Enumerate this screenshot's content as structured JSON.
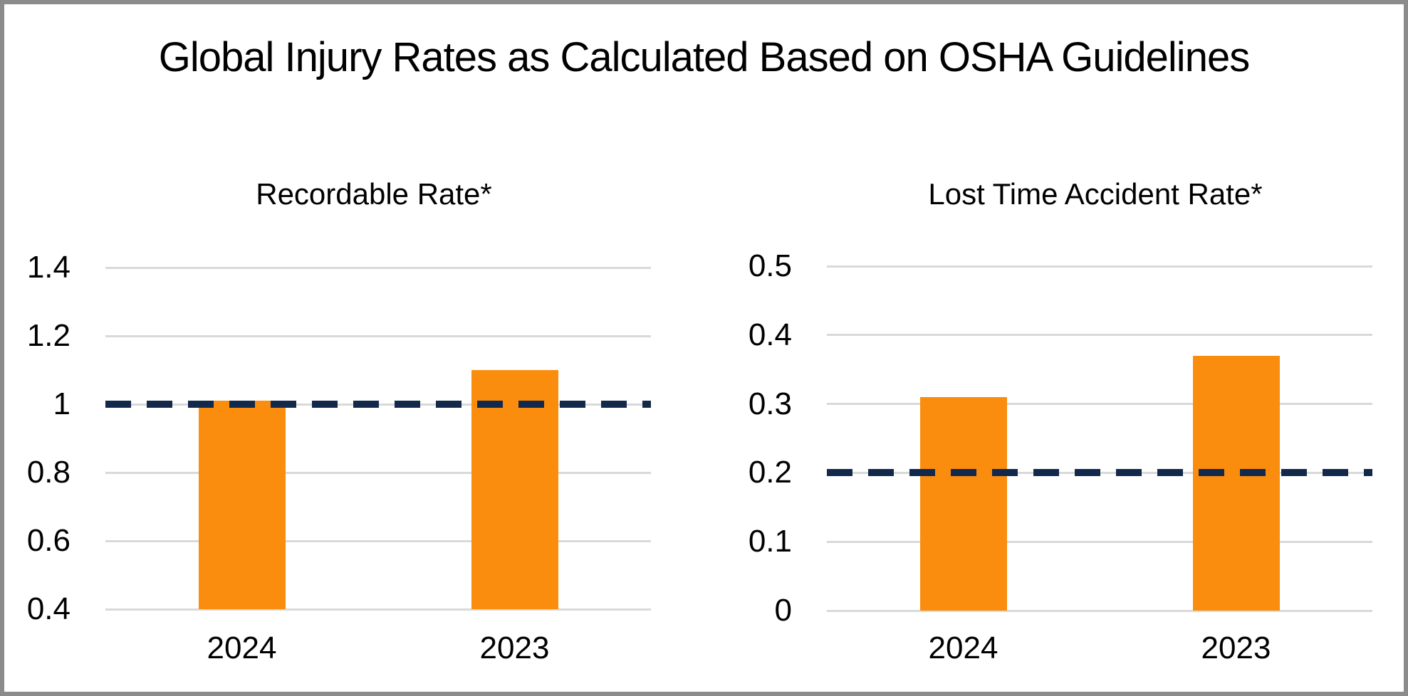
{
  "page": {
    "title": "Global Injury Rates as Calculated Based on OSHA Guidelines"
  },
  "colors": {
    "bar_fill": "#FA8D0E",
    "reference_line": "#13294B",
    "gridline": "#D9D9D9",
    "frame_border": "#8B8B8B",
    "text": "#000000",
    "background": "#FFFFFF"
  },
  "chart_data": [
    {
      "type": "bar",
      "title": "Recordable Rate*",
      "categories": [
        "2024",
        "2023"
      ],
      "values": [
        1.01,
        1.1
      ],
      "ylim": [
        0.4,
        1.4
      ],
      "yticks": [
        1.4,
        1.2,
        1,
        0.8,
        0.6,
        0.4
      ],
      "reference_line": 1.0,
      "grid": true,
      "legend": "none",
      "xlabel": "",
      "ylabel": ""
    },
    {
      "type": "bar",
      "title": "Lost Time Accident Rate*",
      "categories": [
        "2024",
        "2023"
      ],
      "values": [
        0.31,
        0.37
      ],
      "ylim": [
        0,
        0.5
      ],
      "yticks": [
        0.5,
        0.4,
        0.3,
        0.2,
        0.1,
        0
      ],
      "reference_line": 0.2,
      "grid": true,
      "legend": "none",
      "xlabel": "",
      "ylabel": ""
    }
  ]
}
